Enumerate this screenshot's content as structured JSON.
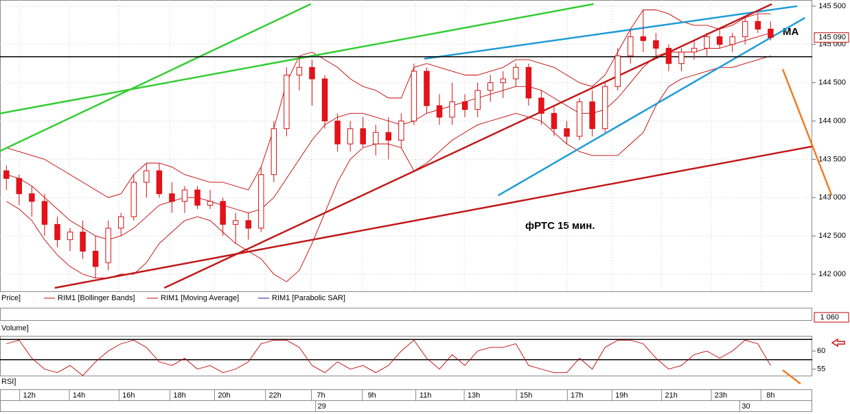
{
  "chart_data": {
    "type": "candlestick",
    "annotation": "фРТС   15 мин.",
    "ma_label": "MA",
    "panel_labels": {
      "price": "Price]",
      "volume": "Volume]",
      "rsi": "RSI]"
    },
    "xlim": [
      -0.5,
      63.27
    ],
    "xticks": [
      {
        "value": 1.8,
        "label": "12h"
      },
      {
        "value": 5.7,
        "label": "14h"
      },
      {
        "value": 9.6,
        "label": "16h"
      },
      {
        "value": 13.6,
        "label": "18h"
      },
      {
        "value": 17.1,
        "label": "20h"
      },
      {
        "value": 21.1,
        "label": "22h"
      },
      {
        "value": 24.7,
        "label": "7h"
      },
      {
        "value": 28.7,
        "label": "9h"
      },
      {
        "value": 32.9,
        "label": "11h"
      },
      {
        "value": 36.7,
        "label": "13h"
      },
      {
        "value": 40.8,
        "label": "15h"
      },
      {
        "value": 44.8,
        "label": "17h"
      },
      {
        "value": 48.3,
        "label": "19h"
      },
      {
        "value": 52.2,
        "label": "21h"
      },
      {
        "value": 56.1,
        "label": "23h"
      },
      {
        "value": 60.0,
        "label": "8h"
      }
    ],
    "dates": [
      {
        "value": 24.6,
        "label": "29"
      },
      {
        "value": 57.9,
        "label": "30"
      }
    ],
    "price": {
      "ylim": [
        141776,
        145571
      ],
      "yticks": [
        {
          "value": 145500,
          "label": "145 500"
        },
        {
          "value": 145000,
          "label": "145 000"
        },
        {
          "value": 144500,
          "label": "144 500"
        },
        {
          "value": 144000,
          "label": "144 000"
        },
        {
          "value": 143500,
          "label": "143 500"
        },
        {
          "value": 143000,
          "label": "143 000"
        },
        {
          "value": 142500,
          "label": "142 500"
        },
        {
          "value": 142000,
          "label": "142 000"
        }
      ],
      "last": {
        "value": 145090,
        "label": "145 090"
      },
      "up_color": "#ffffff",
      "down_color": "#e8101a",
      "edge_color": "#d01010",
      "ohlc": [
        [
          143350,
          143420,
          143100,
          143250
        ],
        [
          143250,
          143300,
          142900,
          143050
        ],
        [
          143050,
          143150,
          142750,
          142950
        ],
        [
          142950,
          143050,
          142500,
          142650
        ],
        [
          142650,
          142750,
          142350,
          142450
        ],
        [
          142450,
          142600,
          142300,
          142550
        ],
        [
          142550,
          142700,
          142200,
          142300
        ],
        [
          142300,
          142500,
          141950,
          142100
        ],
        [
          142150,
          142700,
          142050,
          142600
        ],
        [
          142600,
          142800,
          142500,
          142750
        ],
        [
          142750,
          143300,
          142700,
          143200
        ],
        [
          143200,
          143450,
          143000,
          143350
        ],
        [
          143350,
          143450,
          143000,
          143050
        ],
        [
          143050,
          143200,
          142800,
          142950
        ],
        [
          142950,
          143150,
          142800,
          143100
        ],
        [
          143100,
          143150,
          142850,
          142900
        ],
        [
          142900,
          143100,
          142850,
          142950
        ],
        [
          142950,
          143000,
          142500,
          142650
        ],
        [
          142650,
          142800,
          142400,
          142700
        ],
        [
          142700,
          142800,
          142450,
          142600
        ],
        [
          142600,
          143400,
          142550,
          143300
        ],
        [
          143300,
          144000,
          143200,
          143900
        ],
        [
          143900,
          144700,
          143800,
          144600
        ],
        [
          144600,
          144850,
          144400,
          144700
        ],
        [
          144700,
          144800,
          144200,
          144550
        ],
        [
          144550,
          144600,
          143900,
          144000
        ],
        [
          144000,
          144100,
          143600,
          143700
        ],
        [
          143700,
          144000,
          143600,
          143900
        ],
        [
          143900,
          144050,
          143650,
          143700
        ],
        [
          143700,
          143950,
          143550,
          143850
        ],
        [
          143850,
          144050,
          143500,
          143750
        ],
        [
          143750,
          144100,
          143650,
          144000
        ],
        [
          144000,
          144750,
          143950,
          144650
        ],
        [
          144650,
          144700,
          144100,
          144200
        ],
        [
          144200,
          144350,
          143950,
          144050
        ],
        [
          144050,
          144500,
          143950,
          144250
        ],
        [
          144250,
          144350,
          144050,
          144150
        ],
        [
          144150,
          144500,
          144050,
          144400
        ],
        [
          144400,
          144600,
          144250,
          144500
        ],
        [
          144500,
          144650,
          144300,
          144550
        ],
        [
          144550,
          144750,
          144450,
          144700
        ],
        [
          144700,
          144750,
          144200,
          144300
        ],
        [
          144300,
          144400,
          143950,
          144100
        ],
        [
          144100,
          144200,
          143800,
          143900
        ],
        [
          143900,
          144000,
          143700,
          143800
        ],
        [
          143800,
          144300,
          143750,
          144250
        ],
        [
          144250,
          144400,
          143800,
          143900
        ],
        [
          143900,
          144500,
          143850,
          144450
        ],
        [
          144450,
          144950,
          144400,
          144850
        ],
        [
          144850,
          145200,
          144750,
          145100
        ],
        [
          145100,
          145450,
          144900,
          145050
        ],
        [
          145050,
          145150,
          144850,
          144950
        ],
        [
          144950,
          145000,
          144650,
          144750
        ],
        [
          144750,
          144950,
          144650,
          144900
        ],
        [
          144900,
          145050,
          144800,
          144950
        ],
        [
          144950,
          145150,
          144850,
          145100
        ],
        [
          145100,
          145200,
          144950,
          145000
        ],
        [
          145000,
          145150,
          144900,
          145100
        ],
        [
          145100,
          145350,
          145000,
          145300
        ],
        [
          145300,
          145400,
          145150,
          145200
        ],
        [
          145200,
          145300,
          145050,
          145090
        ]
      ],
      "bollinger": {
        "name": "RIM1 [Bollinger Bands]",
        "color": "#c00000",
        "upper": [
          143650,
          143600,
          143550,
          143500,
          143400,
          143300,
          143200,
          143100,
          143000,
          143050,
          143300,
          143450,
          143450,
          143400,
          143300,
          143250,
          143200,
          143200,
          143150,
          143100,
          143400,
          143900,
          144500,
          144850,
          144900,
          144800,
          144700,
          144550,
          144450,
          144400,
          144300,
          144300,
          144700,
          144750,
          144700,
          144650,
          144600,
          144600,
          144650,
          144700,
          144800,
          144800,
          144750,
          144700,
          144600,
          144500,
          144450,
          144600,
          144900,
          145200,
          145450,
          145450,
          145400,
          145300,
          145250,
          145250,
          145200,
          145250,
          145350,
          145400,
          145400
        ],
        "lower": [
          142950,
          142850,
          142700,
          142450,
          142250,
          142100,
          142000,
          141950,
          141950,
          142000,
          142000,
          142150,
          142400,
          142550,
          142700,
          142750,
          142700,
          142550,
          142400,
          142300,
          142200,
          142000,
          141900,
          142050,
          142400,
          142800,
          143200,
          143500,
          143650,
          143700,
          143700,
          143650,
          143350,
          143450,
          143600,
          143750,
          143850,
          143950,
          144000,
          144050,
          144100,
          144050,
          144000,
          143850,
          143700,
          143600,
          143550,
          143550,
          143550,
          143700,
          143850,
          144200,
          144450,
          144550,
          144600,
          144650,
          144700,
          144700,
          144750,
          144800,
          144850
        ]
      },
      "ma": {
        "name": "RIM1 [Moving Average]",
        "color": "#c00000",
        "values": [
          143300,
          143250,
          143150,
          143000,
          142850,
          142700,
          142600,
          142500,
          142450,
          142500,
          142600,
          142750,
          142900,
          142950,
          143000,
          143000,
          142950,
          142900,
          142850,
          142800,
          142850,
          143000,
          143250,
          143500,
          143750,
          143950,
          144050,
          144100,
          144100,
          144050,
          144000,
          143950,
          144000,
          144100,
          144150,
          144200,
          144250,
          144300,
          144350,
          144400,
          144450,
          144450,
          144400,
          144300,
          144200,
          144100,
          144100,
          144150,
          144300,
          144500,
          144700,
          144850,
          144900,
          144900,
          144900,
          144950,
          144950,
          145000,
          145050,
          145100,
          145150
        ]
      },
      "sar": {
        "name": "RIM1 [Parabolic SAR]",
        "color": "#1a1aa0"
      },
      "drawings": [
        {
          "color": "#33cc33",
          "points": [
            [
              -0.5,
              143607
            ],
            [
              23.9,
              145527
            ]
          ]
        },
        {
          "color": "#33cc33",
          "points": [
            [
              -0.5,
              144098
            ],
            [
              46.1,
              145527
            ]
          ]
        },
        {
          "color": "#1e9bd7",
          "points": [
            [
              32.8,
              144812
            ],
            [
              62.1,
              145500
            ]
          ]
        },
        {
          "color": "#1e9bd7",
          "points": [
            [
              38.6,
              143026
            ],
            [
              62.7,
              145348
            ]
          ]
        },
        {
          "color": "#c01818",
          "points": [
            [
              12.4,
              141821
            ],
            [
              60.1,
              145527
            ]
          ]
        },
        {
          "color": "#c01818",
          "points": [
            [
              3.8,
              141821
            ],
            [
              63.3,
              143669
            ]
          ]
        },
        {
          "color": "#000000",
          "points": [
            [
              -0.5,
              144839
            ],
            [
              63.27,
              144839
            ]
          ]
        },
        {
          "color": "#f07c20",
          "points": [
            [
              60.95,
              144678
            ],
            [
              64.8,
              143027
            ]
          ]
        }
      ]
    },
    "volume": {
      "yticks": [
        {
          "value": 1060,
          "label": "1 060"
        }
      ]
    },
    "rsi": {
      "ylim": [
        53,
        64
      ],
      "yticks": [
        60,
        55
      ],
      "levels": [
        63.2,
        57.6
      ],
      "color": "#c00000",
      "values": [
        62,
        63,
        58,
        55,
        54,
        56,
        53,
        57,
        60,
        62,
        63,
        61,
        57,
        56,
        58,
        55,
        56,
        54,
        55,
        57,
        62,
        63,
        63,
        61,
        56,
        54,
        57,
        55,
        56,
        54,
        56,
        60,
        63,
        58,
        55,
        59,
        56,
        60,
        61,
        61,
        62,
        56,
        55,
        54,
        54,
        58,
        55,
        61,
        63,
        63,
        62,
        58,
        55,
        56,
        59,
        60,
        58,
        60,
        63,
        62,
        56
      ]
    }
  }
}
